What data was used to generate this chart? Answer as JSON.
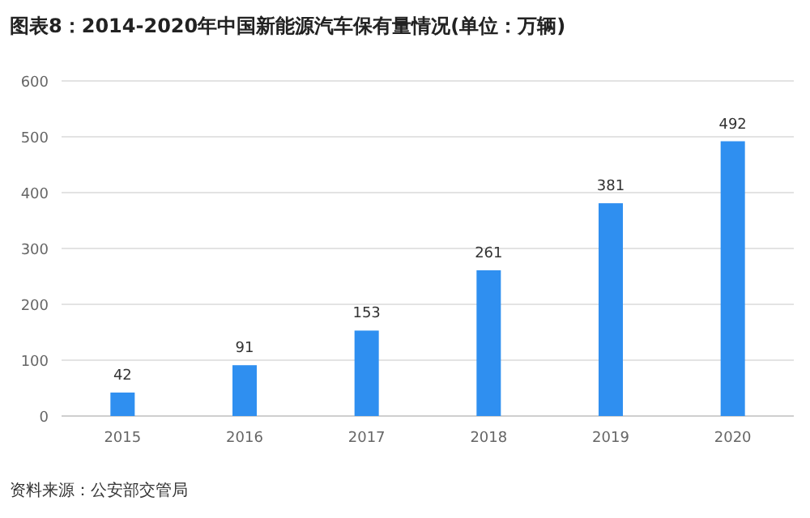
{
  "chart_data": {
    "type": "bar",
    "title": "图表8：2014-2020年中国新能源汽车保有量情况(单位：万辆)",
    "categories": [
      "2015",
      "2016",
      "2017",
      "2018",
      "2019",
      "2020"
    ],
    "values": [
      42,
      91,
      153,
      261,
      381,
      492
    ],
    "color": "#2f8ff0",
    "ylim": [
      0,
      600
    ],
    "yticks": [
      0,
      100,
      200,
      300,
      400,
      500,
      600
    ],
    "grid": "y",
    "data_labels": true,
    "annotations": [
      "资料来源：公安部交管局"
    ]
  }
}
